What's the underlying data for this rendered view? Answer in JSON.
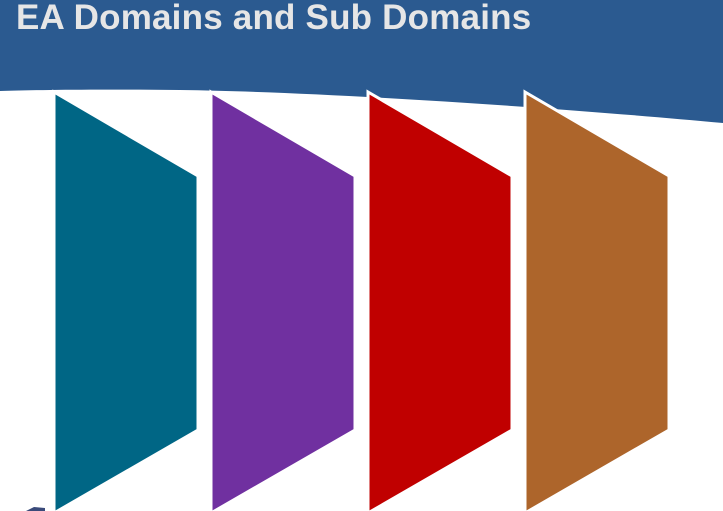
{
  "title": "EA Domains and Sub Domains",
  "colors": {
    "header_band": "#2b5a90",
    "title_text": "#e6e6e6",
    "background": "#ffffff"
  },
  "domains": [
    {
      "color": "#006685"
    },
    {
      "color": "#7030a0"
    },
    {
      "color": "#c00000"
    },
    {
      "color": "#ad652b"
    }
  ]
}
